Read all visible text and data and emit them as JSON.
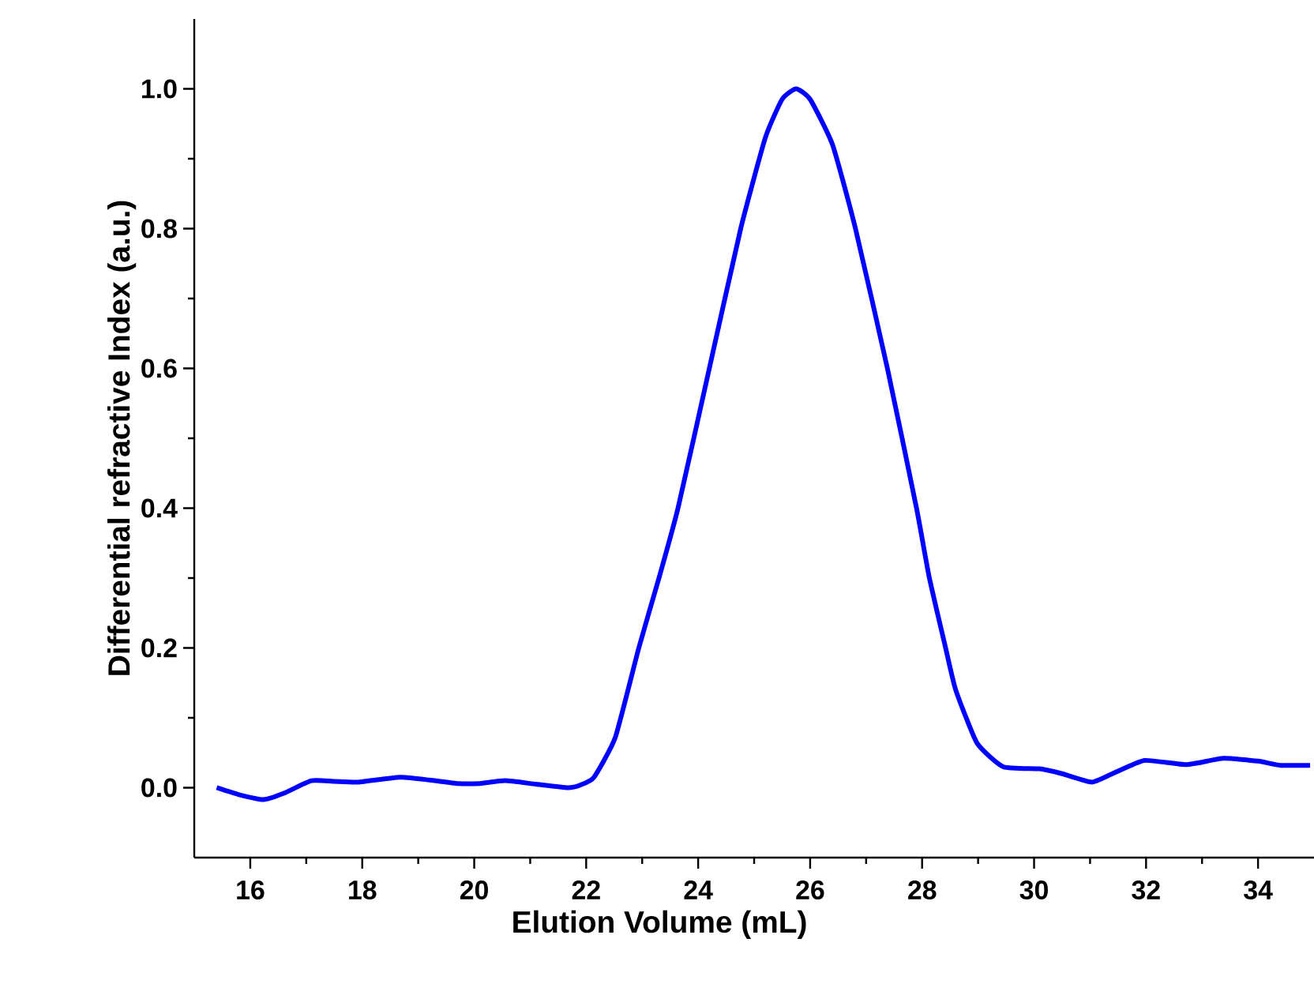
{
  "chart_data": {
    "type": "line",
    "xlabel": "Elution Volume (mL)",
    "ylabel": "Differential refractive Index (a.u.)",
    "xlim": [
      15,
      35
    ],
    "ylim": [
      -0.1,
      1.1
    ],
    "xticks": [
      16,
      18,
      20,
      22,
      24,
      26,
      28,
      30,
      32,
      34
    ],
    "yticks": [
      {
        "value": 0,
        "label": "0.0"
      },
      {
        "value": 0.2,
        "label": "0.2"
      },
      {
        "value": 0.4,
        "label": "0.4"
      },
      {
        "value": 0.6,
        "label": "0.6"
      },
      {
        "value": 0.8,
        "label": "0.8"
      },
      {
        "value": 1,
        "label": "1.0"
      }
    ],
    "grid": false,
    "marker": "none",
    "line_style": "solid",
    "series": [
      {
        "color": "#0000ff",
        "x": [
          15.4,
          15.8,
          16.24,
          16.6,
          17.09,
          17.5,
          17.93,
          18.67,
          19.2,
          19.71,
          20.1,
          20.55,
          21.1,
          21.67,
          21.9,
          22.14,
          22.52,
          22.94,
          23.3,
          23.64,
          24.2,
          24.76,
          25.2,
          25.5,
          25.75,
          26.0,
          26.4,
          26.81,
          27.38,
          27.9,
          28.13,
          28.42,
          28.6,
          28.98,
          29.45,
          30.1,
          30.5,
          31.03,
          31.4,
          31.97,
          32.72,
          33.38,
          34.0,
          34.4,
          34.93
        ],
        "values": [
          0,
          -0.01,
          -0.017,
          -0.008,
          0.01,
          0.009,
          0.008,
          0.015,
          0.011,
          0.006,
          0.006,
          0.01,
          0.005,
          0,
          0.004,
          0.015,
          0.072,
          0.2,
          0.3,
          0.4,
          0.6,
          0.8,
          0.93,
          0.985,
          1.0,
          0.985,
          0.92,
          0.8,
          0.6,
          0.4,
          0.3,
          0.2,
          0.14,
          0.064,
          0.03,
          0.027,
          0.02,
          0.008,
          0.02,
          0.039,
          0.033,
          0.042,
          0.038,
          0.032,
          0.032
        ]
      }
    ]
  }
}
